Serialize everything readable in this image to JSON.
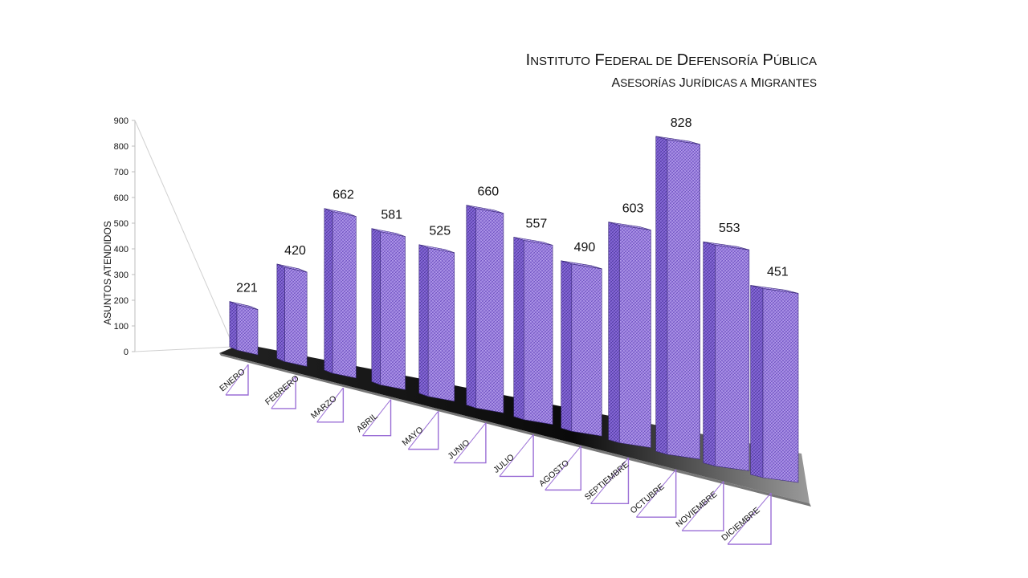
{
  "chart_data": {
    "type": "bar",
    "title_line1": "Instituto Federal de Defensoría Pública",
    "title_line2": "Asesorías Jurídicas a Migrantes",
    "ylabel": "ASUNTOS ATENDIDOS",
    "xlabel": "",
    "ylim": [
      0,
      900
    ],
    "yticks": [
      "0",
      "100",
      "200",
      "300",
      "400",
      "500",
      "600",
      "700",
      "800",
      "900"
    ],
    "categories": [
      "ENERO",
      "FEBRERO",
      "MARZO",
      "ABRIL",
      "MAYO",
      "JUNIO",
      "JULIO",
      "AGOSTO",
      "SEPTIEMBRE",
      "OCTUBRE",
      "NOVIEMBRE",
      "DICIEMBRE"
    ],
    "values": [
      221,
      420,
      662,
      581,
      525,
      660,
      557,
      490,
      603,
      828,
      553,
      451
    ],
    "colors": {
      "bar_front": "#9b7fe0",
      "bar_side": "#6a4fc4",
      "bar_top": "#c8b6f2",
      "bar_edge": "#3b2a7a",
      "floor": "#111111",
      "label_border": "#9b6fd6"
    },
    "grid": false,
    "legend": "none"
  }
}
